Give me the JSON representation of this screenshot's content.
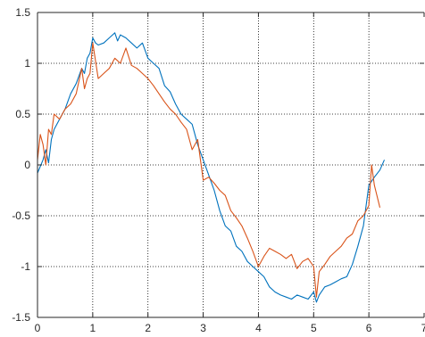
{
  "chart_data": {
    "type": "line",
    "title": "",
    "xlabel": "",
    "ylabel": "",
    "xlim": [
      0,
      7
    ],
    "ylim": [
      -1.5,
      1.5
    ],
    "xticks": [
      0,
      1,
      2,
      3,
      4,
      5,
      6,
      7
    ],
    "yticks": [
      -1.5,
      -1,
      -0.5,
      0,
      0.5,
      1,
      1.5
    ],
    "xtick_labels": [
      "0",
      "1",
      "2",
      "3",
      "4",
      "5",
      "6",
      "7"
    ],
    "ytick_labels": [
      "-1.5",
      "-1",
      "-0.5",
      "0",
      "0.5",
      "1",
      "1.5"
    ],
    "grid": true,
    "series": [
      {
        "color": "#0072BD",
        "x": [
          0.0,
          0.1,
          0.15,
          0.2,
          0.25,
          0.3,
          0.4,
          0.5,
          0.6,
          0.7,
          0.8,
          0.85,
          0.9,
          0.95,
          1.0,
          1.05,
          1.1,
          1.2,
          1.3,
          1.4,
          1.45,
          1.5,
          1.6,
          1.7,
          1.8,
          1.9,
          2.0,
          2.1,
          2.2,
          2.3,
          2.4,
          2.5,
          2.6,
          2.7,
          2.8,
          2.9,
          3.0,
          3.1,
          3.2,
          3.3,
          3.4,
          3.5,
          3.6,
          3.7,
          3.8,
          3.9,
          4.0,
          4.1,
          4.2,
          4.3,
          4.4,
          4.5,
          4.6,
          4.7,
          4.8,
          4.9,
          5.0,
          5.05,
          5.1,
          5.2,
          5.3,
          5.4,
          5.5,
          5.6,
          5.7,
          5.8,
          5.9,
          6.0,
          6.1,
          6.2,
          6.28
        ],
        "y": [
          -0.08,
          0.05,
          0.15,
          0.02,
          0.25,
          0.35,
          0.45,
          0.55,
          0.7,
          0.8,
          0.95,
          0.9,
          1.05,
          1.1,
          1.25,
          1.2,
          1.18,
          1.2,
          1.25,
          1.3,
          1.22,
          1.28,
          1.25,
          1.2,
          1.15,
          1.2,
          1.05,
          1.0,
          0.95,
          0.78,
          0.72,
          0.6,
          0.5,
          0.45,
          0.4,
          0.2,
          0.05,
          -0.1,
          -0.25,
          -0.45,
          -0.6,
          -0.65,
          -0.8,
          -0.85,
          -0.95,
          -1.0,
          -1.05,
          -1.1,
          -1.2,
          -1.25,
          -1.28,
          -1.3,
          -1.32,
          -1.28,
          -1.3,
          -1.32,
          -1.25,
          -1.35,
          -1.28,
          -1.2,
          -1.18,
          -1.15,
          -1.12,
          -1.1,
          -0.98,
          -0.8,
          -0.6,
          -0.2,
          -0.12,
          -0.05,
          0.05
        ]
      },
      {
        "color": "#D95319",
        "x": [
          0.0,
          0.05,
          0.1,
          0.15,
          0.2,
          0.25,
          0.3,
          0.4,
          0.5,
          0.6,
          0.7,
          0.8,
          0.85,
          0.9,
          0.95,
          1.0,
          1.1,
          1.2,
          1.3,
          1.4,
          1.5,
          1.6,
          1.7,
          1.8,
          1.9,
          2.0,
          2.1,
          2.2,
          2.3,
          2.4,
          2.5,
          2.6,
          2.7,
          2.8,
          2.9,
          3.0,
          3.1,
          3.2,
          3.3,
          3.4,
          3.5,
          3.6,
          3.7,
          3.8,
          3.9,
          4.0,
          4.1,
          4.2,
          4.3,
          4.4,
          4.5,
          4.6,
          4.7,
          4.8,
          4.9,
          5.0,
          5.05,
          5.1,
          5.2,
          5.3,
          5.4,
          5.5,
          5.6,
          5.7,
          5.8,
          5.9,
          6.0,
          6.05,
          6.1,
          6.2
        ],
        "y": [
          0.05,
          0.3,
          0.2,
          0.0,
          0.35,
          0.3,
          0.5,
          0.45,
          0.55,
          0.6,
          0.7,
          0.95,
          0.75,
          0.85,
          0.9,
          1.2,
          0.85,
          0.9,
          0.95,
          1.05,
          1.0,
          1.15,
          0.98,
          0.95,
          0.9,
          0.85,
          0.78,
          0.7,
          0.62,
          0.55,
          0.5,
          0.42,
          0.35,
          0.15,
          0.25,
          -0.15,
          -0.12,
          -0.18,
          -0.25,
          -0.3,
          -0.45,
          -0.52,
          -0.6,
          -0.72,
          -0.85,
          -1.0,
          -0.9,
          -0.82,
          -0.85,
          -0.88,
          -0.92,
          -0.88,
          -1.02,
          -0.95,
          -0.92,
          -1.0,
          -1.3,
          -1.05,
          -0.98,
          -0.9,
          -0.85,
          -0.8,
          -0.72,
          -0.68,
          -0.55,
          -0.5,
          -0.4,
          0.0,
          -0.2,
          -0.42
        ]
      }
    ]
  }
}
